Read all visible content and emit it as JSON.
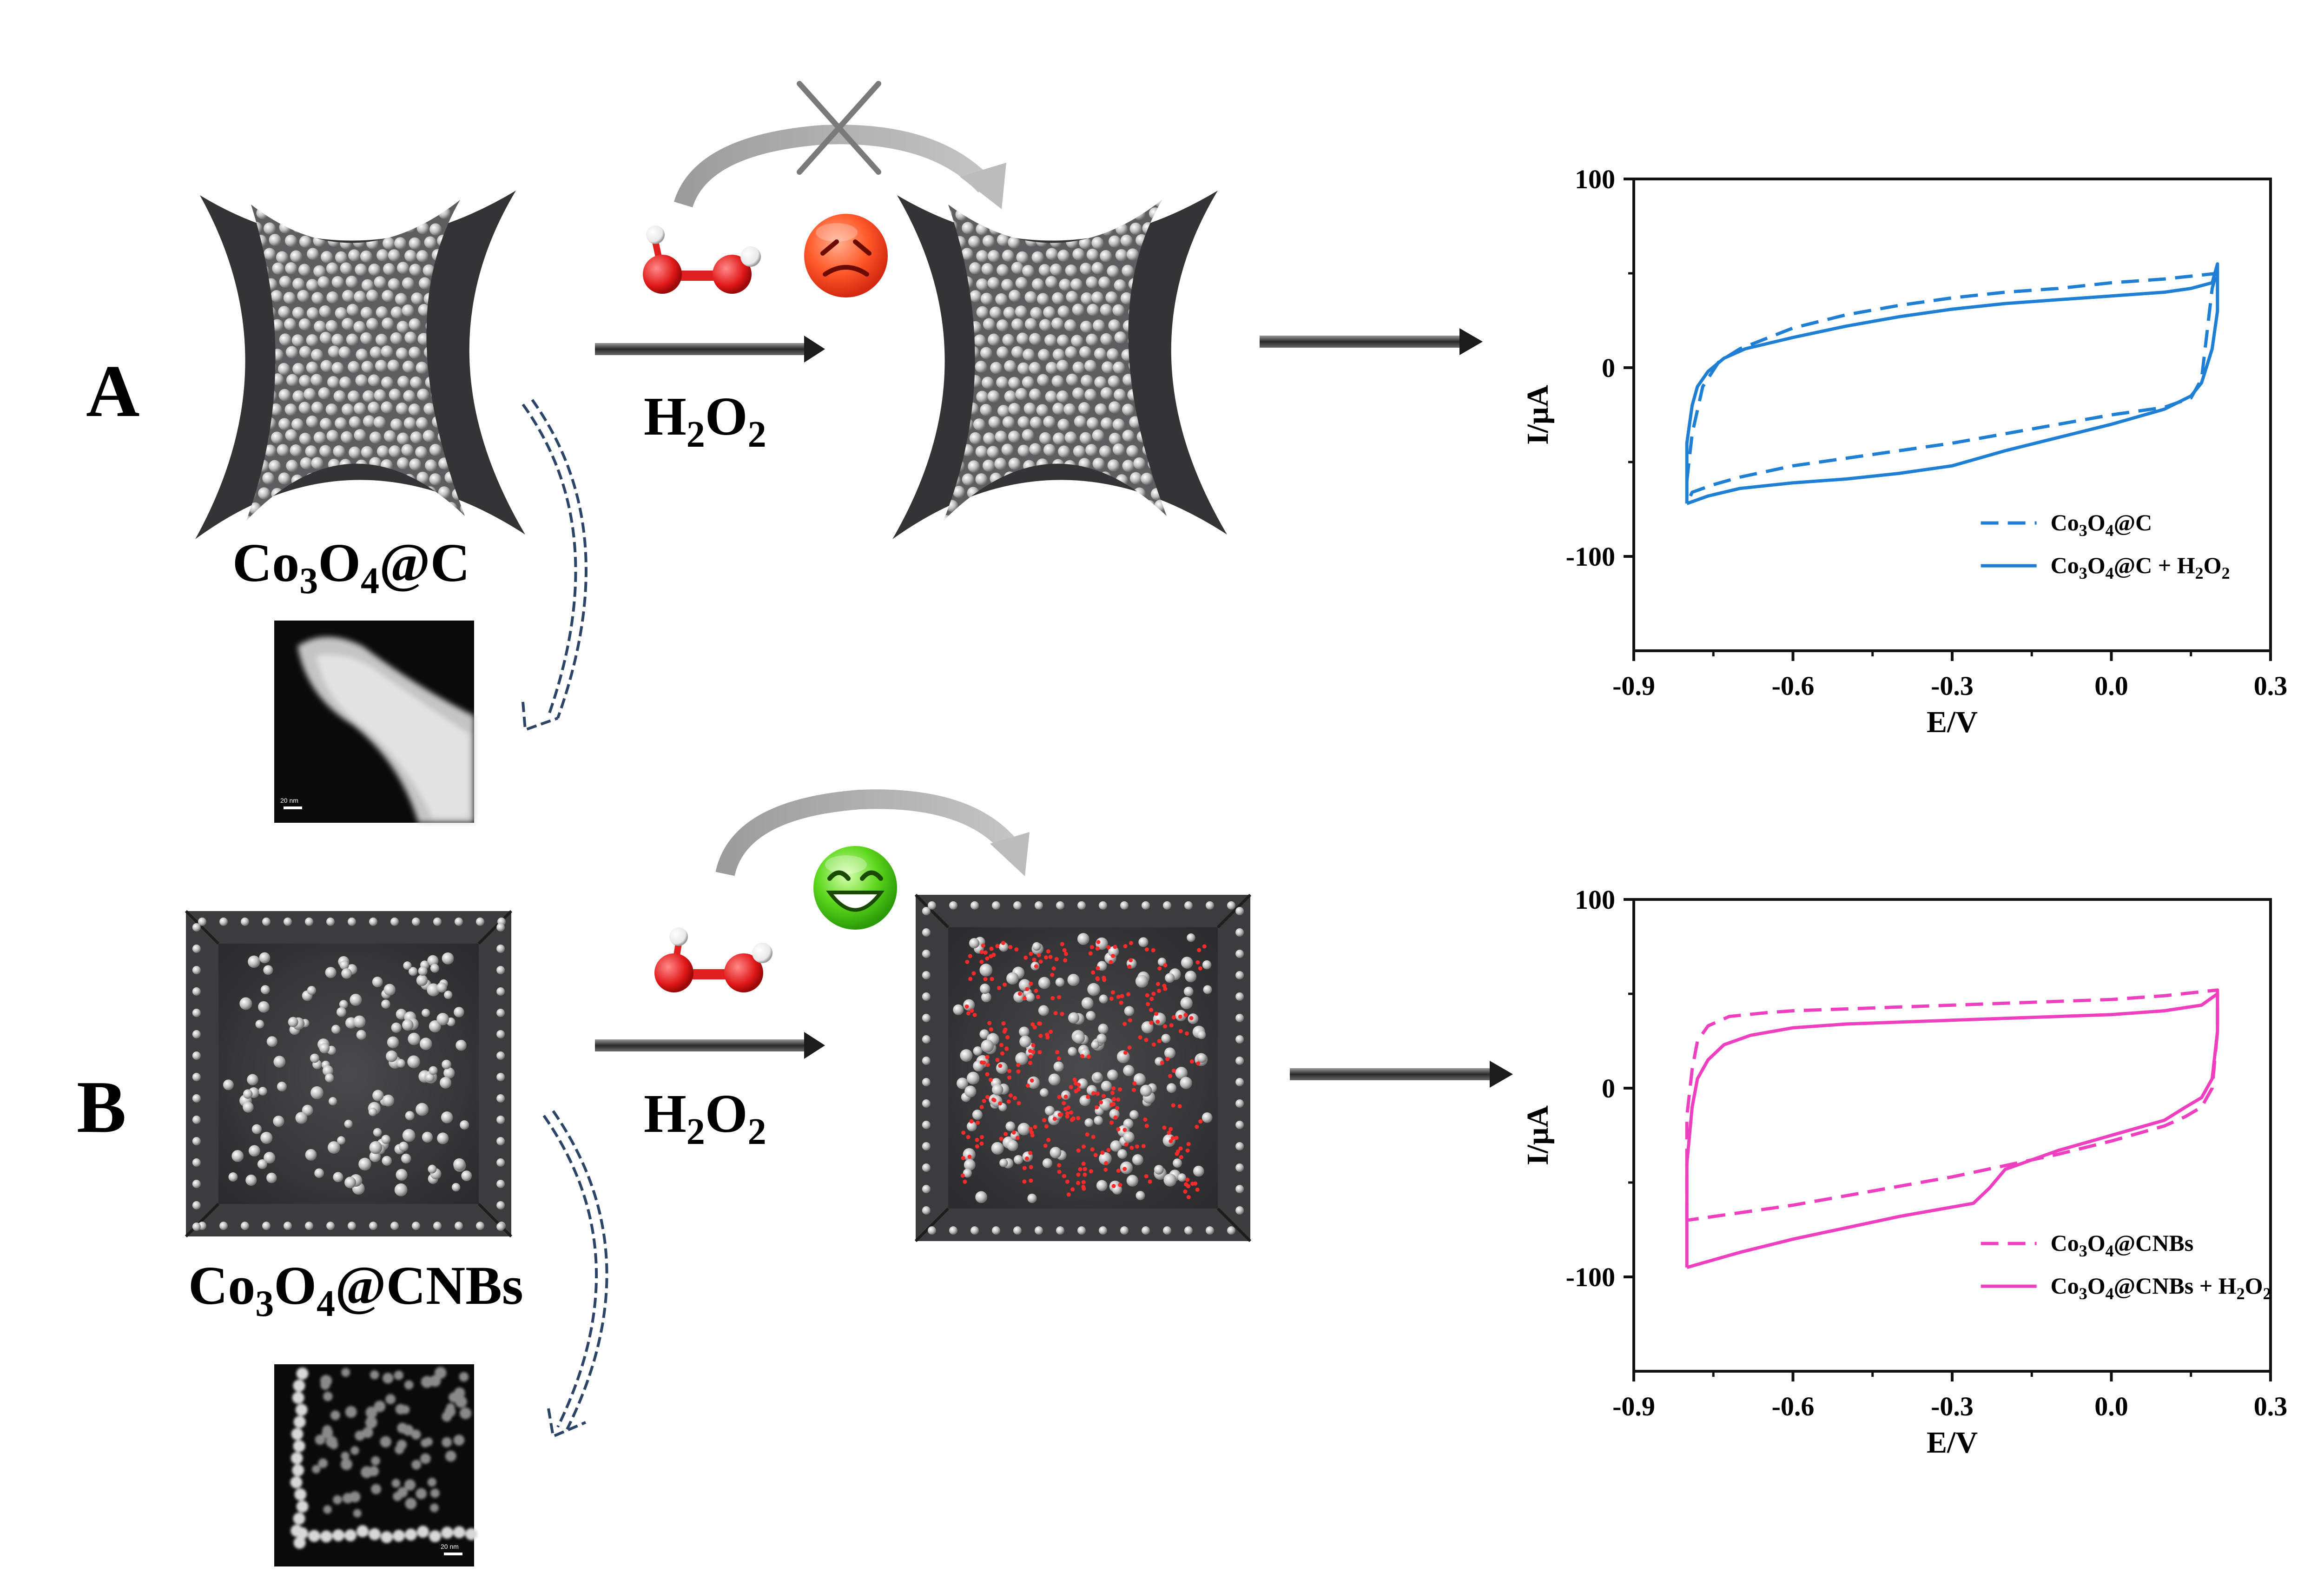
{
  "panels": {
    "a": {
      "letter": "A",
      "material_base": "Co",
      "material_sub1": "3",
      "material_mid": "O",
      "material_sub2": "4",
      "material_tail": "@C",
      "reagent_main": "H",
      "reagent_sub1": "2",
      "reagent_mid": "O",
      "reagent_sub2": "2",
      "tem_scalebar": "20 nm"
    },
    "b": {
      "letter": "B",
      "material_base": "Co",
      "material_sub1": "3",
      "material_mid": "O",
      "material_sub2": "4",
      "material_tail": "@CNBs",
      "reagent_main": "H",
      "reagent_sub1": "2",
      "reagent_mid": "O",
      "reagent_sub2": "2",
      "tem_scalebar": "20 nm"
    }
  },
  "colors": {
    "series_a": "#1e7fd4",
    "series_b": "#ee3fc0",
    "shell": "#3a3a3c",
    "molecule": "#e0181a"
  },
  "chart_data": [
    {
      "type": "line",
      "panel": "A",
      "xlabel": "E/V",
      "ylabel": "I/μA",
      "xlim": [
        -0.9,
        0.3
      ],
      "ylim": [
        -150,
        100
      ],
      "xticks": [
        -0.9,
        -0.6,
        -0.3,
        0.0,
        0.3
      ],
      "yticks": [
        -100,
        0,
        100
      ],
      "xtick_labels": [
        "-0.9",
        "-0.6",
        "-0.3",
        "0.0",
        "0.3"
      ],
      "ytick_labels": [
        "-100",
        "0",
        "100"
      ],
      "legend_position": "bottom-right",
      "legend": [
        {
          "base": "Co",
          "s1": "3",
          "mid": "O",
          "s2": "4",
          "tail": "@C",
          "extra": "",
          "style": "dashed"
        },
        {
          "base": "Co",
          "s1": "3",
          "mid": "O",
          "s2": "4",
          "tail": "@C + H",
          "extra": "2",
          "tail2": "O",
          "extra2": "2",
          "style": "solid"
        }
      ],
      "series": [
        {
          "name": "Co3O4@C",
          "style": "dashed",
          "x": [
            -0.8,
            -0.79,
            -0.77,
            -0.74,
            -0.7,
            -0.6,
            -0.5,
            -0.4,
            -0.3,
            -0.2,
            -0.1,
            0.0,
            0.1,
            0.2,
            0.2,
            0.19,
            0.17,
            0.15,
            0.1,
            0.0,
            -0.1,
            -0.2,
            -0.3,
            -0.4,
            -0.5,
            -0.6,
            -0.7,
            -0.75,
            -0.79,
            -0.8
          ],
          "y": [
            -60,
            -35,
            -10,
            3,
            10,
            21,
            28,
            33,
            37,
            40,
            42,
            45,
            47,
            50,
            52,
            42,
            -6,
            -16,
            -21,
            -25,
            -30,
            -35,
            -40,
            -44,
            -48,
            -52,
            -58,
            -62,
            -66,
            -72
          ]
        },
        {
          "name": "Co3O4@C + H2O2",
          "style": "solid",
          "x": [
            -0.8,
            -0.8,
            -0.79,
            -0.78,
            -0.76,
            -0.73,
            -0.69,
            -0.6,
            -0.5,
            -0.4,
            -0.3,
            -0.2,
            -0.1,
            0.0,
            0.1,
            0.15,
            0.19,
            0.2,
            0.2,
            0.19,
            0.17,
            0.15,
            0.1,
            0.0,
            -0.1,
            -0.2,
            -0.3,
            -0.4,
            -0.5,
            -0.6,
            -0.7,
            -0.76,
            -0.8
          ],
          "y": [
            -72,
            -40,
            -20,
            -10,
            -2,
            5,
            10,
            16,
            22,
            27,
            31,
            34,
            36,
            38,
            40,
            42,
            45,
            55,
            30,
            10,
            -8,
            -15,
            -22,
            -30,
            -37,
            -44,
            -52,
            -56,
            -59,
            -61,
            -64,
            -68,
            -72
          ]
        }
      ]
    },
    {
      "type": "line",
      "panel": "B",
      "xlabel": "E/V",
      "ylabel": "I/μA",
      "xlim": [
        -0.9,
        0.3
      ],
      "ylim": [
        -150,
        100
      ],
      "xticks": [
        -0.9,
        -0.6,
        -0.3,
        0.0,
        0.3
      ],
      "yticks": [
        -100,
        0,
        100
      ],
      "xtick_labels": [
        "-0.9",
        "-0.6",
        "-0.3",
        "0.0",
        "0.3"
      ],
      "ytick_labels": [
        "-100",
        "0",
        "100"
      ],
      "legend_position": "bottom-right",
      "legend": [
        {
          "base": "Co",
          "s1": "3",
          "mid": "O",
          "s2": "4",
          "tail": "@CNBs",
          "extra": "",
          "style": "dashed"
        },
        {
          "base": "Co",
          "s1": "3",
          "mid": "O",
          "s2": "4",
          "tail": "@CNBs + H",
          "extra": "2",
          "tail2": "O",
          "extra2": "2",
          "style": "solid"
        }
      ],
      "series": [
        {
          "name": "Co3O4@CNBs",
          "style": "dashed",
          "x": [
            -0.8,
            -0.8,
            -0.79,
            -0.78,
            -0.76,
            -0.72,
            -0.65,
            -0.6,
            -0.5,
            -0.4,
            -0.3,
            -0.2,
            -0.1,
            0.0,
            0.1,
            0.2,
            0.2,
            0.19,
            0.17,
            0.14,
            0.1,
            0.0,
            -0.1,
            -0.2,
            -0.3,
            -0.4,
            -0.5,
            -0.6,
            -0.7,
            -0.8
          ],
          "y": [
            -70,
            -15,
            10,
            25,
            33,
            38,
            40,
            41,
            42,
            43,
            44,
            45,
            46,
            47,
            49,
            52,
            30,
            0,
            -10,
            -15,
            -20,
            -28,
            -35,
            -41,
            -47,
            -52,
            -57,
            -62,
            -66,
            -70
          ]
        },
        {
          "name": "Co3O4@CNBs + H2O2",
          "style": "solid",
          "x": [
            -0.8,
            -0.8,
            -0.79,
            -0.78,
            -0.76,
            -0.73,
            -0.68,
            -0.6,
            -0.5,
            -0.4,
            -0.3,
            -0.2,
            -0.1,
            0.0,
            0.1,
            0.17,
            0.2,
            0.2,
            0.19,
            0.17,
            0.14,
            0.1,
            0.0,
            -0.1,
            -0.2,
            -0.23,
            -0.26,
            -0.3,
            -0.4,
            -0.5,
            -0.6,
            -0.7,
            -0.8
          ],
          "y": [
            -95,
            -40,
            -10,
            5,
            15,
            23,
            28,
            32,
            34,
            35,
            36,
            37,
            38,
            39,
            41,
            44,
            50,
            30,
            5,
            -5,
            -10,
            -17,
            -25,
            -33,
            -43,
            -53,
            -61,
            -63,
            -68,
            -74,
            -80,
            -87,
            -95
          ]
        }
      ]
    }
  ]
}
